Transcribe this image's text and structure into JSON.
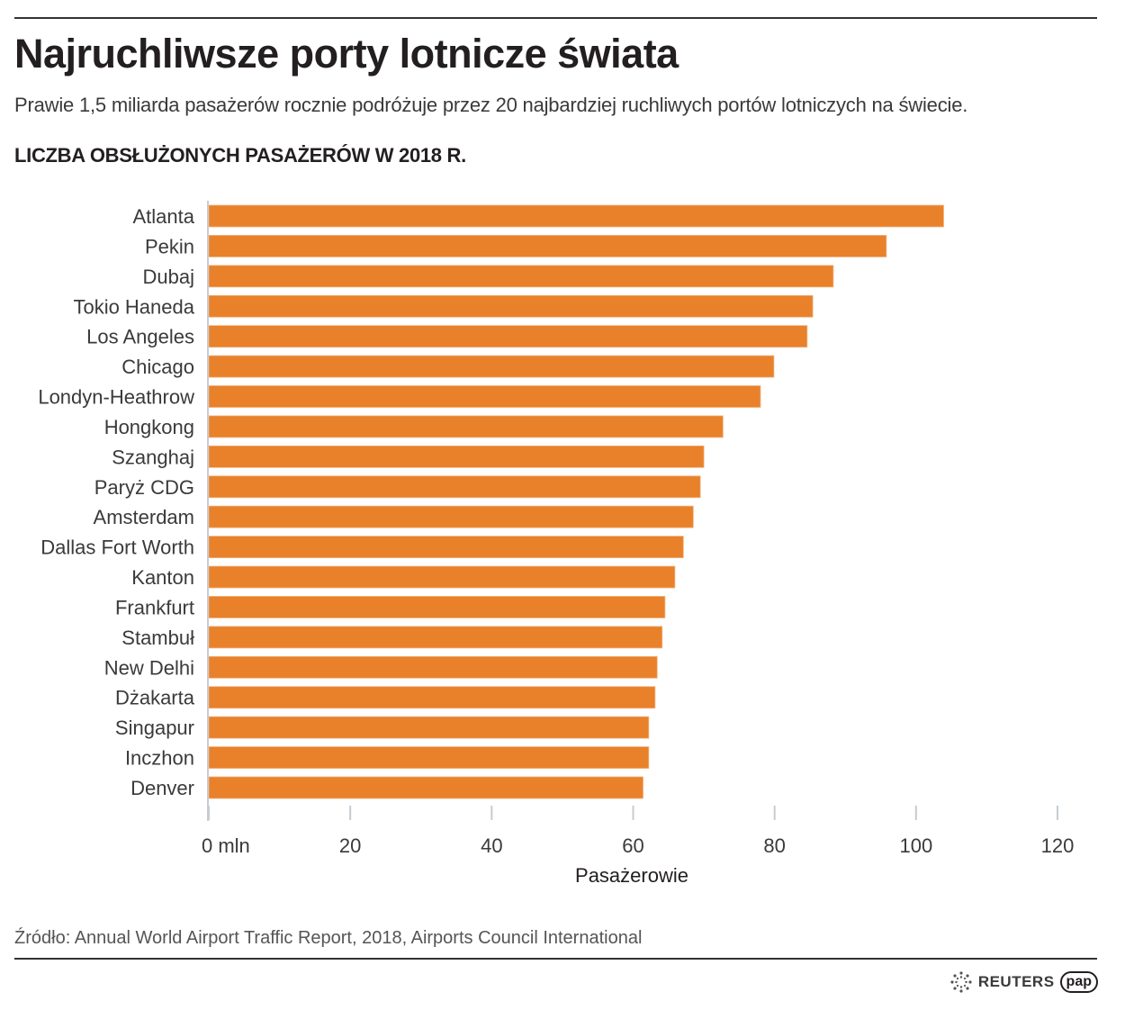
{
  "header": {
    "title": "Najruchliwsze porty lotnicze świata",
    "subtitle": "Prawie 1,5 miliarda pasażerów rocznie podróżuje przez 20 najbardziej ruchliwych portów lotniczych na świecie.",
    "section_title": "LICZBA OBSŁUŻONYCH PASAŻERÓW W 2018 R."
  },
  "chart_data": {
    "type": "bar",
    "orientation": "horizontal",
    "title": "LICZBA OBSŁUŻONYCH PASAŻERÓW W 2018 R.",
    "xlabel": "Pasażerowie",
    "ylabel": "",
    "unit": "mln",
    "xlim": [
      0,
      120
    ],
    "xticks": [
      0,
      20,
      40,
      60,
      80,
      100,
      120
    ],
    "xtick_labels": [
      "0 mln",
      "20",
      "40",
      "60",
      "80",
      "100",
      "120"
    ],
    "grid": false,
    "bar_color": "#e8812a",
    "categories": [
      "Atlanta",
      "Pekin",
      "Dubaj",
      "Tokio Haneda",
      "Los Angeles",
      "Chicago",
      "Londyn-Heathrow",
      "Hongkong",
      "Szanghaj",
      "Paryż CDG",
      "Amsterdam",
      "Dallas Fort Worth",
      "Kanton",
      "Frankfurt",
      "Stambuł",
      "New Delhi",
      "Dżakarta",
      "Singapur",
      "Inczhon",
      "Denver"
    ],
    "values": [
      103.9,
      95.8,
      88.3,
      85.4,
      84.6,
      79.9,
      78.0,
      72.7,
      70.0,
      69.5,
      68.5,
      67.1,
      65.9,
      64.5,
      64.1,
      63.4,
      63.1,
      62.2,
      62.2,
      61.4
    ]
  },
  "footer": {
    "source": "Źródło: Annual World Airport Traffic Report, 2018, Airports Council International",
    "logo_reuters": "REUTERS",
    "logo_pap": "pap",
    "reuters_icon": "reuters-dot-circle-icon"
  }
}
